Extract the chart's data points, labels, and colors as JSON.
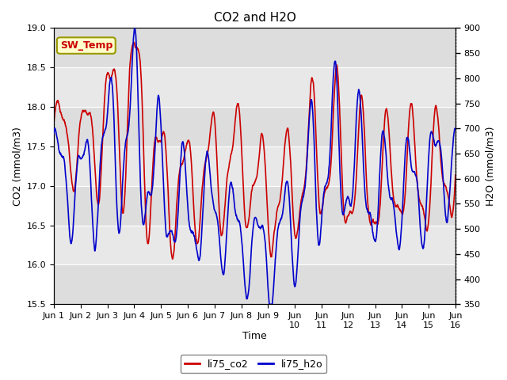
{
  "title": "CO2 and H2O",
  "xlabel": "Time",
  "ylabel_left": "CO2 (mmol/m3)",
  "ylabel_right": "H2O (mmol/m3)",
  "ylim_left": [
    15.5,
    19.0
  ],
  "ylim_right": [
    350,
    900
  ],
  "yticks_left": [
    15.5,
    16.0,
    16.5,
    17.0,
    17.5,
    18.0,
    18.5,
    19.0
  ],
  "yticks_right": [
    350,
    400,
    450,
    500,
    550,
    600,
    650,
    700,
    750,
    800,
    850,
    900
  ],
  "color_co2": "#cc0000",
  "color_h2o": "#0000cc",
  "legend_co2": "li75_co2",
  "legend_h2o": "li75_h2o",
  "annotation_text": "SW_Temp",
  "annotation_color": "#cc0000",
  "annotation_bg": "#ffffcc",
  "annotation_border": "#999900",
  "grid_color": "#cccccc",
  "plot_bg": "#e8e8e8",
  "shade_bg": "#dcdcdc",
  "title_fontsize": 11,
  "axis_fontsize": 9,
  "tick_fontsize": 8,
  "legend_fontsize": 9,
  "line_width": 1.2
}
